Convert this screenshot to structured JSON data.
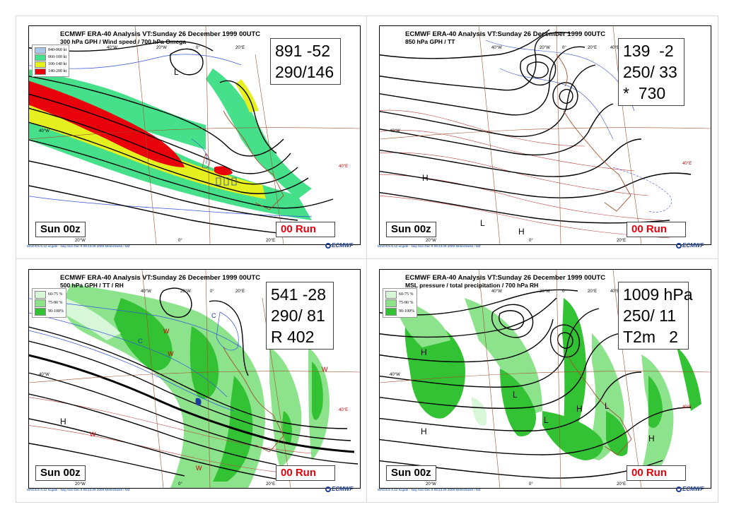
{
  "colors": {
    "accent_red": "#e8000b",
    "ecmwf_blue": "#1a3fa0",
    "jet_040_060": "#a9c8ea",
    "jet_060_100": "#46e08a",
    "jet_100_140": "#e6f01e",
    "jet_140_200": "#e8000b",
    "rh_60_75": "#d8f6d8",
    "rh_75_90": "#8ce38c",
    "rh_90_100": "#33c233"
  },
  "panels": [
    {
      "title": "ECMWF ERA-40  Analysis VT:Sunday 26 December 1999 00UTC",
      "subtitle": "300 hPa GPH / Wind speed / 700 hPa Omega",
      "stats": [
        "891 -52",
        "290/146"
      ],
      "time_label": "Sun 00z",
      "run_label": "00 Run",
      "legend": [
        {
          "label": "040-060 kt",
          "color": "#a9c8ea"
        },
        {
          "label": "060-100 kt",
          "color": "#46e08a"
        },
        {
          "label": "100-140 kt",
          "color": "#e6f01e"
        },
        {
          "label": "140-200 kt",
          "color": "#e8000b"
        }
      ],
      "lon_top": [
        "40°W",
        "20°W",
        "0°",
        "20°E"
      ],
      "lon_bottom": [
        "20°W",
        "0°",
        "20°E"
      ],
      "lat_left": [
        "40°W"
      ],
      "lat_right": [
        "40°E"
      ],
      "footer": "MAGICS 6.12 ecgate - swg Sun Dec  6 08:23:28 2009 MeteoSwiss / MZ",
      "logo": "ECMWF"
    },
    {
      "title": "ECMWF ERA-40  Analysis VT:Sunday 26 December 1999 00UTC",
      "subtitle": "850 hPa GPH / TT",
      "stats": [
        "139  -2",
        "250/ 33",
        "*  730"
      ],
      "time_label": "Sun 00z",
      "run_label": "00 Run",
      "legend": [],
      "lon_top": [
        "40°W",
        "20°W",
        "0°",
        "20°E",
        "40°E"
      ],
      "lon_bottom": [
        "20°W",
        "0°",
        "20°E"
      ],
      "lat_left": [
        "40°W"
      ],
      "lat_right": [
        "40°E"
      ],
      "footer": "MAGICS 6.12 ecgate - swg Sun Dec  6 08:23:28 2009 MeteoSwiss / MZ",
      "logo": "ECMWF"
    },
    {
      "title": "ECMWF ERA-40  Analysis VT:Sunday 26 December 1999 00UTC",
      "subtitle": "500 hPa GPH / TT / RH",
      "stats": [
        "541 -28",
        "290/ 81",
        "R 402"
      ],
      "time_label": "Sun 00z",
      "run_label": "00 Run",
      "legend": [
        {
          "label": "60-75 %",
          "color": "#d8f6d8"
        },
        {
          "label": "75-90 %",
          "color": "#8ce38c"
        },
        {
          "label": "90-100%",
          "color": "#33c233"
        }
      ],
      "lon_top": [
        "40°W",
        "20°W",
        "0°",
        "20°E"
      ],
      "lon_bottom": [
        "20°W",
        "0°",
        "20°E"
      ],
      "lat_left": [
        "40°W"
      ],
      "lat_right": [
        "40°E"
      ],
      "footer": "MAGICS 6.12 ecgate - swg Sun Dec  6 08:23:29 2009 MeteoSwiss / MZ",
      "logo": "ECMWF"
    },
    {
      "title": "ECMWF ERA-40  Analysis VT:Sunday 26 December 1999 00UTC",
      "subtitle": "MSL pressure / total precipitation / 700 hPa RH",
      "stats": [
        "1009 hPa",
        "250/ 11",
        "T2m   2"
      ],
      "time_label": "Sun 00z",
      "run_label": "00 Run",
      "legend": [
        {
          "label": "60-75 %",
          "color": "#d8f6d8"
        },
        {
          "label": "75-90 %",
          "color": "#8ce38c"
        },
        {
          "label": "90-100%",
          "color": "#33c233"
        }
      ],
      "lon_top": [
        "40°W",
        "20°W",
        "0°",
        "20°E",
        "40°E"
      ],
      "lon_bottom": [
        "20°W",
        "0°",
        "20°E"
      ],
      "lat_left": [
        "40°W"
      ],
      "lat_right": [
        "40°E"
      ],
      "footer": "MAGICS 6.12 ecgate - swg Sun Dec  6 08:23:29 2009 MeteoSwiss / MZ",
      "logo": "ECMWF"
    }
  ],
  "pressure_labels": {
    "p1": [
      "L"
    ],
    "p2": [
      "H",
      "L",
      "H"
    ],
    "p3": [
      "H",
      "W",
      "W",
      "W",
      "W",
      "C",
      "C",
      "W"
    ],
    "p4": [
      "H",
      "H",
      "L",
      "L",
      "H",
      "L",
      "H"
    ]
  }
}
